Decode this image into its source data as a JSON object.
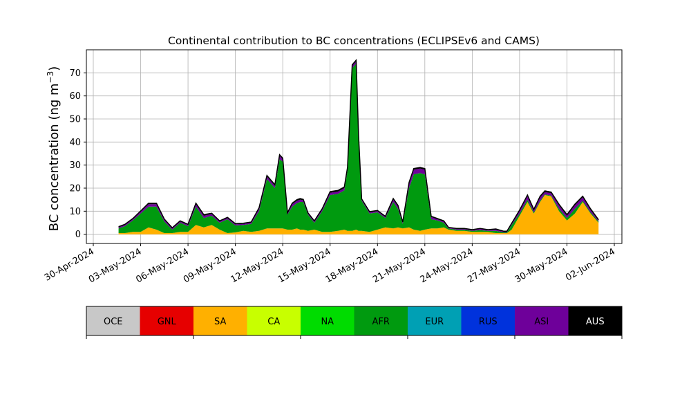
{
  "chart_data": {
    "type": "area",
    "stacked": true,
    "title": "Continental contribution to BC concentrations (ECLIPSEv6 and CAMS)",
    "ylabel_main": "BC concentration (ng m",
    "ylabel_sup": "−3",
    "ylabel_close": ")",
    "xlim": [
      "2024-04-30",
      "2024-06-02"
    ],
    "ylim": [
      -4,
      80
    ],
    "x_ticks": [
      "30-Apr-2024",
      "03-May-2024",
      "06-May-2024",
      "09-May-2024",
      "12-May-2024",
      "15-May-2024",
      "18-May-2024",
      "21-May-2024",
      "24-May-2024",
      "27-May-2024",
      "30-May-2024",
      "02-Jun-2024"
    ],
    "y_ticks": [
      "0",
      "10",
      "20",
      "30",
      "40",
      "50",
      "60",
      "70"
    ],
    "grid": true,
    "x_days": [
      1.6,
      2.0,
      2.5,
      3.0,
      3.5,
      4.0,
      4.5,
      5.0,
      5.5,
      6.0,
      6.5,
      7.0,
      7.5,
      8.0,
      8.5,
      9.0,
      9.5,
      10.0,
      10.5,
      11.0,
      11.5,
      11.8,
      12.0,
      12.3,
      12.6,
      12.9,
      13.1,
      13.3,
      13.6,
      14.0,
      14.5,
      15.0,
      15.5,
      15.9,
      16.1,
      16.4,
      16.65,
      16.8,
      17.0,
      17.5,
      18.0,
      18.5,
      19.0,
      19.3,
      19.6,
      20.0,
      20.3,
      20.7,
      21.0,
      21.4,
      21.8,
      22.2,
      22.5,
      23.0,
      23.5,
      24.0,
      24.5,
      25.0,
      25.5,
      26.0,
      26.2,
      26.5,
      27.0,
      27.5,
      27.9,
      28.3,
      28.6,
      29.0,
      29.5,
      30.0,
      30.5,
      31.0,
      31.5,
      32.0
    ],
    "series": [
      {
        "name": "SA",
        "color": "#ffb000",
        "values": [
          0.5,
          0.5,
          1.0,
          1.0,
          3.0,
          2.0,
          0.5,
          0.5,
          1.0,
          1.0,
          4.0,
          3.0,
          4.0,
          2.0,
          0.5,
          0.8,
          1.5,
          1.0,
          1.5,
          2.5,
          2.5,
          2.5,
          2.5,
          2.0,
          2.0,
          2.5,
          2.0,
          2.0,
          1.5,
          2.0,
          1.0,
          1.0,
          1.5,
          2.0,
          1.5,
          1.5,
          2.0,
          1.5,
          1.5,
          1.0,
          2.0,
          3.0,
          2.5,
          3.0,
          2.5,
          3.0,
          2.0,
          1.5,
          2.0,
          2.5,
          2.5,
          3.0,
          2.0,
          1.5,
          1.5,
          1.0,
          1.0,
          1.0,
          0.5,
          0.5,
          0.5,
          2.0,
          8.0,
          14.0,
          9.0,
          14.0,
          17.0,
          16.5,
          10.0,
          6.0,
          9.0,
          14.0,
          9.0,
          5.0
        ]
      },
      {
        "name": "AFR",
        "color": "#009a0f",
        "values": [
          2.0,
          3.0,
          5.0,
          8.0,
          9.0,
          10.0,
          5.0,
          1.5,
          4.0,
          2.5,
          8.0,
          4.0,
          4.0,
          3.0,
          6.0,
          3.0,
          2.5,
          3.5,
          8.5,
          21.5,
          17.5,
          30.0,
          29.0,
          6.5,
          10.0,
          11.0,
          12.0,
          12.0,
          7.0,
          3.0,
          9.0,
          16.0,
          16.0,
          17.0,
          26.0,
          70.5,
          72.0,
          40.0,
          13.0,
          8.0,
          7.5,
          4.0,
          11.5,
          8.0,
          2.0,
          17.0,
          24.0,
          25.0,
          24.0,
          4.0,
          3.5,
          2.0,
          0.5,
          0.5,
          0.5,
          0.5,
          0.8,
          0.5,
          1.0,
          0.3,
          0.3,
          2.0,
          1.0,
          1.0,
          0.5,
          0.5,
          0.3,
          0.3,
          1.0,
          1.0,
          2.0,
          0.5,
          0.5,
          0.5
        ]
      },
      {
        "name": "ASI",
        "color": "#6e009a",
        "values": [
          0.5,
          0.5,
          0.5,
          0.8,
          1.0,
          1.0,
          0.8,
          0.5,
          0.5,
          0.5,
          1.0,
          1.0,
          0.8,
          0.5,
          0.5,
          0.5,
          0.5,
          0.5,
          1.0,
          1.0,
          1.0,
          1.5,
          1.0,
          0.5,
          1.0,
          1.0,
          1.0,
          0.8,
          0.5,
          0.5,
          0.8,
          1.0,
          1.0,
          1.0,
          1.0,
          1.0,
          1.0,
          1.0,
          0.5,
          0.5,
          0.5,
          0.5,
          1.0,
          1.0,
          0.5,
          2.0,
          2.0,
          2.0,
          2.0,
          1.0,
          0.5,
          0.5,
          0.3,
          0.3,
          0.3,
          0.3,
          0.5,
          0.3,
          0.5,
          0.3,
          0.3,
          0.5,
          1.0,
          1.5,
          0.8,
          1.5,
          1.0,
          1.0,
          1.5,
          1.0,
          1.5,
          1.5,
          1.0,
          0.5
        ]
      },
      {
        "name": "AUS",
        "color": "#000000",
        "values": [
          0.3,
          0.3,
          0.3,
          0.3,
          0.5,
          0.5,
          0.3,
          0.3,
          0.3,
          0.3,
          0.5,
          0.5,
          0.3,
          0.3,
          0.3,
          0.3,
          0.3,
          0.3,
          0.5,
          0.5,
          0.5,
          0.5,
          0.5,
          0.3,
          0.5,
          0.5,
          0.5,
          0.3,
          0.3,
          0.3,
          0.3,
          0.5,
          0.5,
          0.5,
          0.5,
          0.5,
          0.5,
          0.5,
          0.3,
          0.3,
          0.3,
          0.3,
          0.5,
          0.5,
          0.3,
          0.5,
          0.5,
          0.5,
          0.5,
          0.3,
          0.3,
          0.3,
          0.2,
          0.2,
          0.2,
          0.2,
          0.2,
          0.2,
          0.3,
          0.2,
          0.2,
          0.3,
          0.5,
          0.5,
          0.5,
          0.5,
          0.5,
          0.5,
          0.5,
          0.5,
          0.5,
          0.5,
          0.5,
          0.3
        ]
      }
    ],
    "legend": [
      {
        "label": "OCE",
        "color": "#c8c8c8",
        "text_color": "#000000"
      },
      {
        "label": "GNL",
        "color": "#e60000",
        "text_color": "#000000"
      },
      {
        "label": "SA",
        "color": "#ffb000",
        "text_color": "#000000"
      },
      {
        "label": "CA",
        "color": "#c8ff00",
        "text_color": "#000000"
      },
      {
        "label": "NA",
        "color": "#00dc00",
        "text_color": "#000000"
      },
      {
        "label": "AFR",
        "color": "#009a0f",
        "text_color": "#000000"
      },
      {
        "label": "EUR",
        "color": "#00a0b4",
        "text_color": "#000000"
      },
      {
        "label": "RUS",
        "color": "#0032dc",
        "text_color": "#000000"
      },
      {
        "label": "ASI",
        "color": "#6e009a",
        "text_color": "#000000"
      },
      {
        "label": "AUS",
        "color": "#000000",
        "text_color": "#ffffff"
      }
    ],
    "legend_placement": "bottom"
  }
}
